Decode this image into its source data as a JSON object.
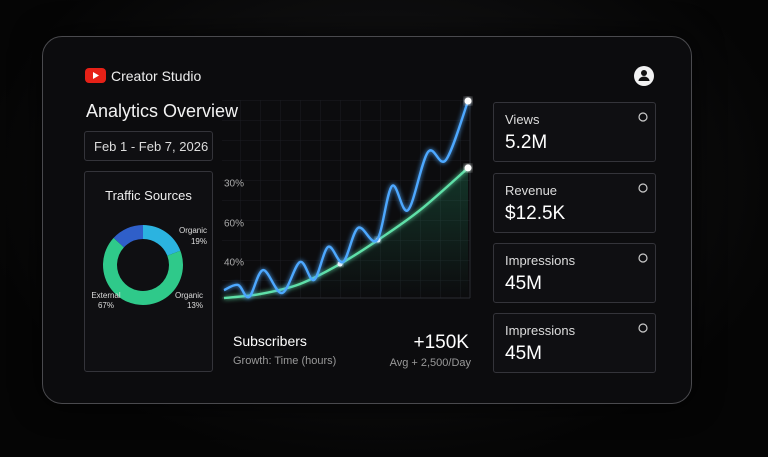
{
  "header": {
    "title": "Creator Studio"
  },
  "page_title": "Analytics Overview",
  "date_range": "Feb 1 - Feb 7, 2026",
  "cards": [
    {
      "label": "Views",
      "value": "5.2M"
    },
    {
      "label": "Revenue",
      "value": "$12.5K"
    },
    {
      "label": "Impressions",
      "value": "45M"
    },
    {
      "label": "Impressions",
      "value": "45M"
    }
  ],
  "chart_data": [
    {
      "type": "pie",
      "title": "Traffic Sources",
      "categories": [
        "Organic",
        "External",
        "Organic"
      ],
      "values": [
        19,
        67,
        13
      ],
      "value_labels": [
        "19%",
        "67%",
        "13%"
      ],
      "colors": [
        "#2bb3e0",
        "#2fc98a",
        "#2f5fc9"
      ]
    },
    {
      "type": "line",
      "title": "Subscribers",
      "subtitle": "Growth: Time (hours)",
      "axis_labels": [
        "30%",
        "60%",
        "40%"
      ],
      "annotations": [
        "+150K",
        "Avg + 2,500/Day"
      ],
      "xlim": [
        0,
        100
      ],
      "ylim": [
        0,
        100
      ],
      "series": [
        {
          "color": "#4ea8ff",
          "x": [
            0,
            5.7,
            10.2,
            15.9,
            23.6,
            30.9,
            36.6,
            42.3,
            48.4,
            54.5,
            62.2,
            68.3,
            74.8,
            82.9,
            90.2,
            99.2
          ],
          "values": [
            4,
            6.6,
            0.5,
            14.1,
            2.5,
            18.2,
            9.1,
            25.8,
            18.2,
            35.4,
            29.3,
            56.6,
            44.4,
            73.7,
            69.7,
            99.5
          ]
        },
        {
          "color": "#5fe0a8",
          "x": [
            0,
            14.6,
            30.9,
            47.2,
            62.6,
            79.7,
            99.2
          ],
          "values": [
            0,
            2,
            7.1,
            17.2,
            29.3,
            44.4,
            65.7
          ]
        }
      ]
    }
  ]
}
